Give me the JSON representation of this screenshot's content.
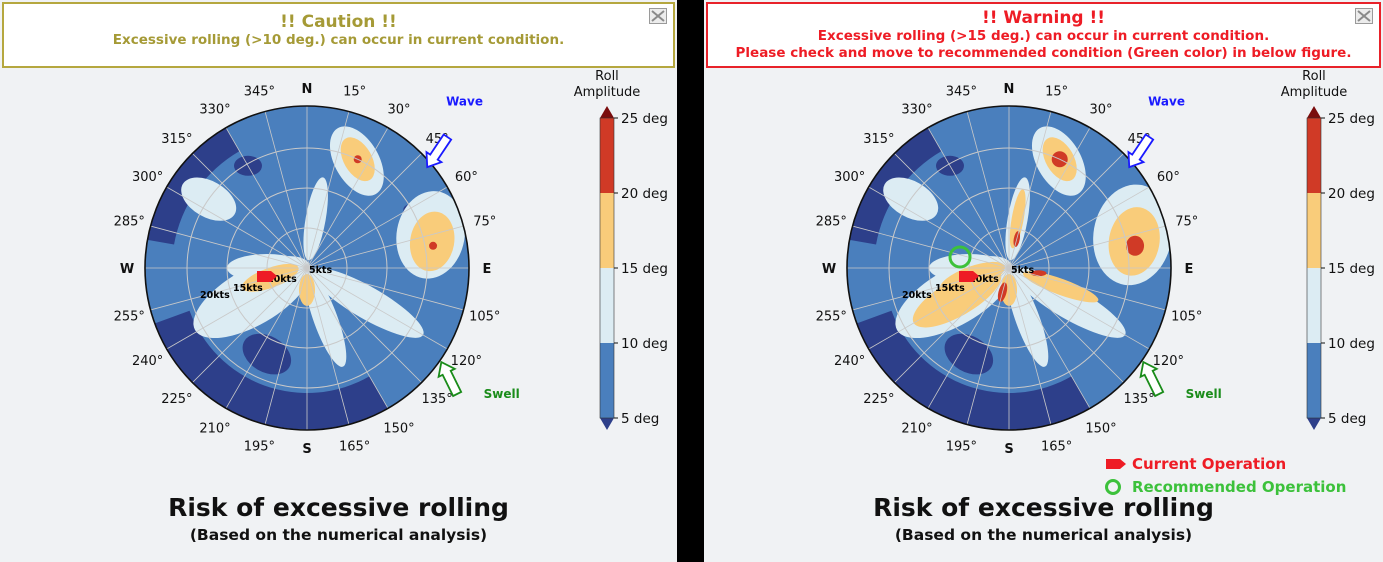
{
  "panels": [
    {
      "banner": {
        "title": "!! Caution !!",
        "lines": [
          "Excessive rolling (>10 deg.) can occur in current condition."
        ]
      },
      "chart_data": {
        "type": "polar-contour",
        "directions": {
          "N": "N",
          "E": "E",
          "S": "S",
          "W": "W"
        },
        "angle_labels": [
          "15°",
          "30°",
          "45°",
          "60°",
          "75°",
          "105°",
          "120°",
          "135°",
          "150°",
          "165°",
          "195°",
          "210°",
          "225°",
          "240°",
          "255°",
          "285°",
          "300°",
          "315°",
          "330°",
          "345°"
        ],
        "speed_labels": [
          "5kts",
          "10kts",
          "15kts",
          "20kts"
        ],
        "wave_label": "Wave",
        "swell_label": "Swell",
        "colorbar": {
          "title": "Roll Amplitude",
          "ticks": [
            "5 deg",
            "10 deg",
            "15 deg",
            "20 deg",
            "25 deg"
          ]
        }
      },
      "title": "Risk of excessive rolling",
      "subtitle": "(Based on the numerical analysis)"
    },
    {
      "banner": {
        "title": "!! Warning !!",
        "lines": [
          "Excessive rolling (>15 deg.) can occur in current condition.",
          "Please check and move to recommended condition (Green color) in below figure."
        ]
      },
      "chart_data": {
        "type": "polar-contour",
        "directions": {
          "N": "N",
          "E": "E",
          "S": "S",
          "W": "W"
        },
        "angle_labels": [
          "15°",
          "30°",
          "45°",
          "60°",
          "75°",
          "105°",
          "120°",
          "135°",
          "150°",
          "165°",
          "195°",
          "210°",
          "225°",
          "240°",
          "255°",
          "285°",
          "300°",
          "315°",
          "330°",
          "345°"
        ],
        "speed_labels": [
          "5kts",
          "10kts",
          "15kts",
          "20kts"
        ],
        "wave_label": "Wave",
        "swell_label": "Swell",
        "colorbar": {
          "title": "Roll Amplitude",
          "ticks": [
            "5 deg",
            "10 deg",
            "15 deg",
            "20 deg",
            "25 deg"
          ]
        }
      },
      "legend": {
        "current": "Current Operation",
        "recommended": "Recommended Operation"
      },
      "title": "Risk of excessive rolling",
      "subtitle": "(Based on the numerical analysis)"
    }
  ],
  "colors": {
    "level_5_10": "#4a7fbd",
    "level_10_15": "#dcecf3",
    "level_15_20": "#f9cc7a",
    "level_20_25": "#d03a26",
    "extreme": "#7a0d0d",
    "low": "#2d3f8a",
    "current_operation": "#ee1c25",
    "recommended_operation": "#3cc13b",
    "wave_arrow": "#1a1aff",
    "swell_arrow": "#1a8c1a"
  }
}
